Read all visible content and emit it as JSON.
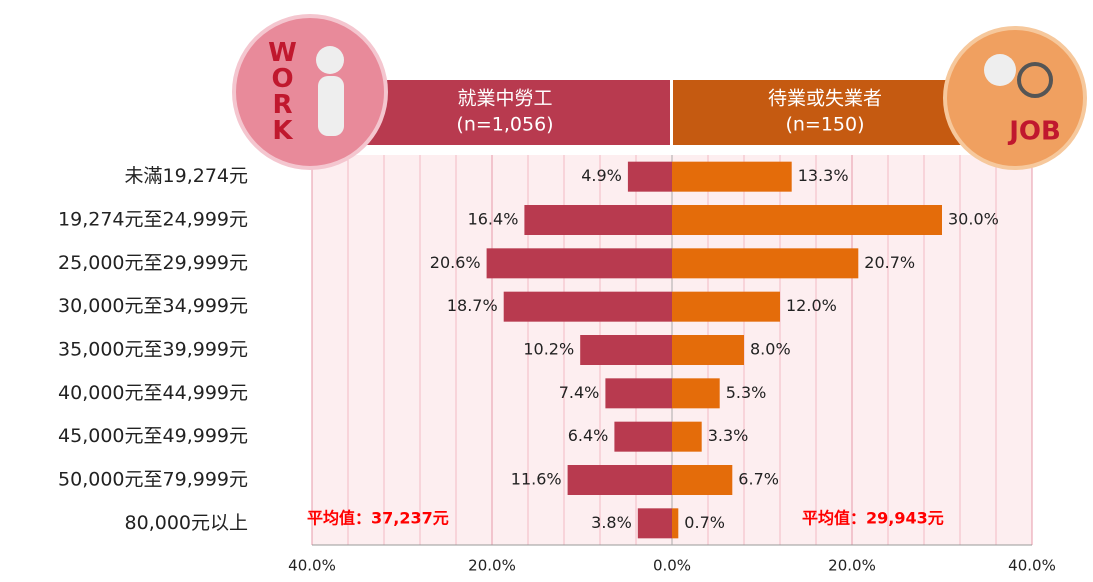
{
  "chart_data": {
    "type": "butterfly",
    "badges": [
      "WORK",
      "JOB"
    ],
    "categories": [
      "未滿19,274元",
      "19,274元至24,999元",
      "25,000元至29,999元",
      "30,000元至34,999元",
      "35,000元至39,999元",
      "40,000元至44,999元",
      "45,000元至49,999元",
      "50,000元至79,999元",
      "80,000元以上"
    ],
    "series": [
      {
        "name": "就業中勞工",
        "sample": "(n=1,056)",
        "side": "left",
        "color": "#b83a4f",
        "values": [
          4.9,
          16.4,
          20.6,
          18.7,
          10.2,
          7.4,
          6.4,
          11.6,
          3.8
        ],
        "value_labels": [
          "4.9%",
          "16.4%",
          "20.6%",
          "18.7%",
          "10.2%",
          "7.4%",
          "6.4%",
          "11.6%",
          "3.8%"
        ],
        "annotation": "平均值：37,237元"
      },
      {
        "name": "待業或失業者",
        "sample": "(n=150)",
        "side": "right",
        "color": "#e46c0a",
        "values": [
          13.3,
          30.0,
          20.7,
          12.0,
          8.0,
          5.3,
          3.3,
          6.7,
          0.7
        ],
        "value_labels": [
          "13.3%",
          "30.0%",
          "20.7%",
          "12.0%",
          "8.0%",
          "5.3%",
          "3.3%",
          "6.7%",
          "0.7%"
        ],
        "annotation": "平均值：29,943元"
      }
    ],
    "xlim": [
      -40,
      40
    ],
    "xticks": [
      {
        "value": -40,
        "label": "40.0%"
      },
      {
        "value": -20,
        "label": "20.0%"
      },
      {
        "value": 0,
        "label": "0.0%"
      },
      {
        "value": 20,
        "label": "20.0%"
      },
      {
        "value": 40,
        "label": "40.0%"
      }
    ],
    "minor_grid_step": 4,
    "grid": true
  }
}
